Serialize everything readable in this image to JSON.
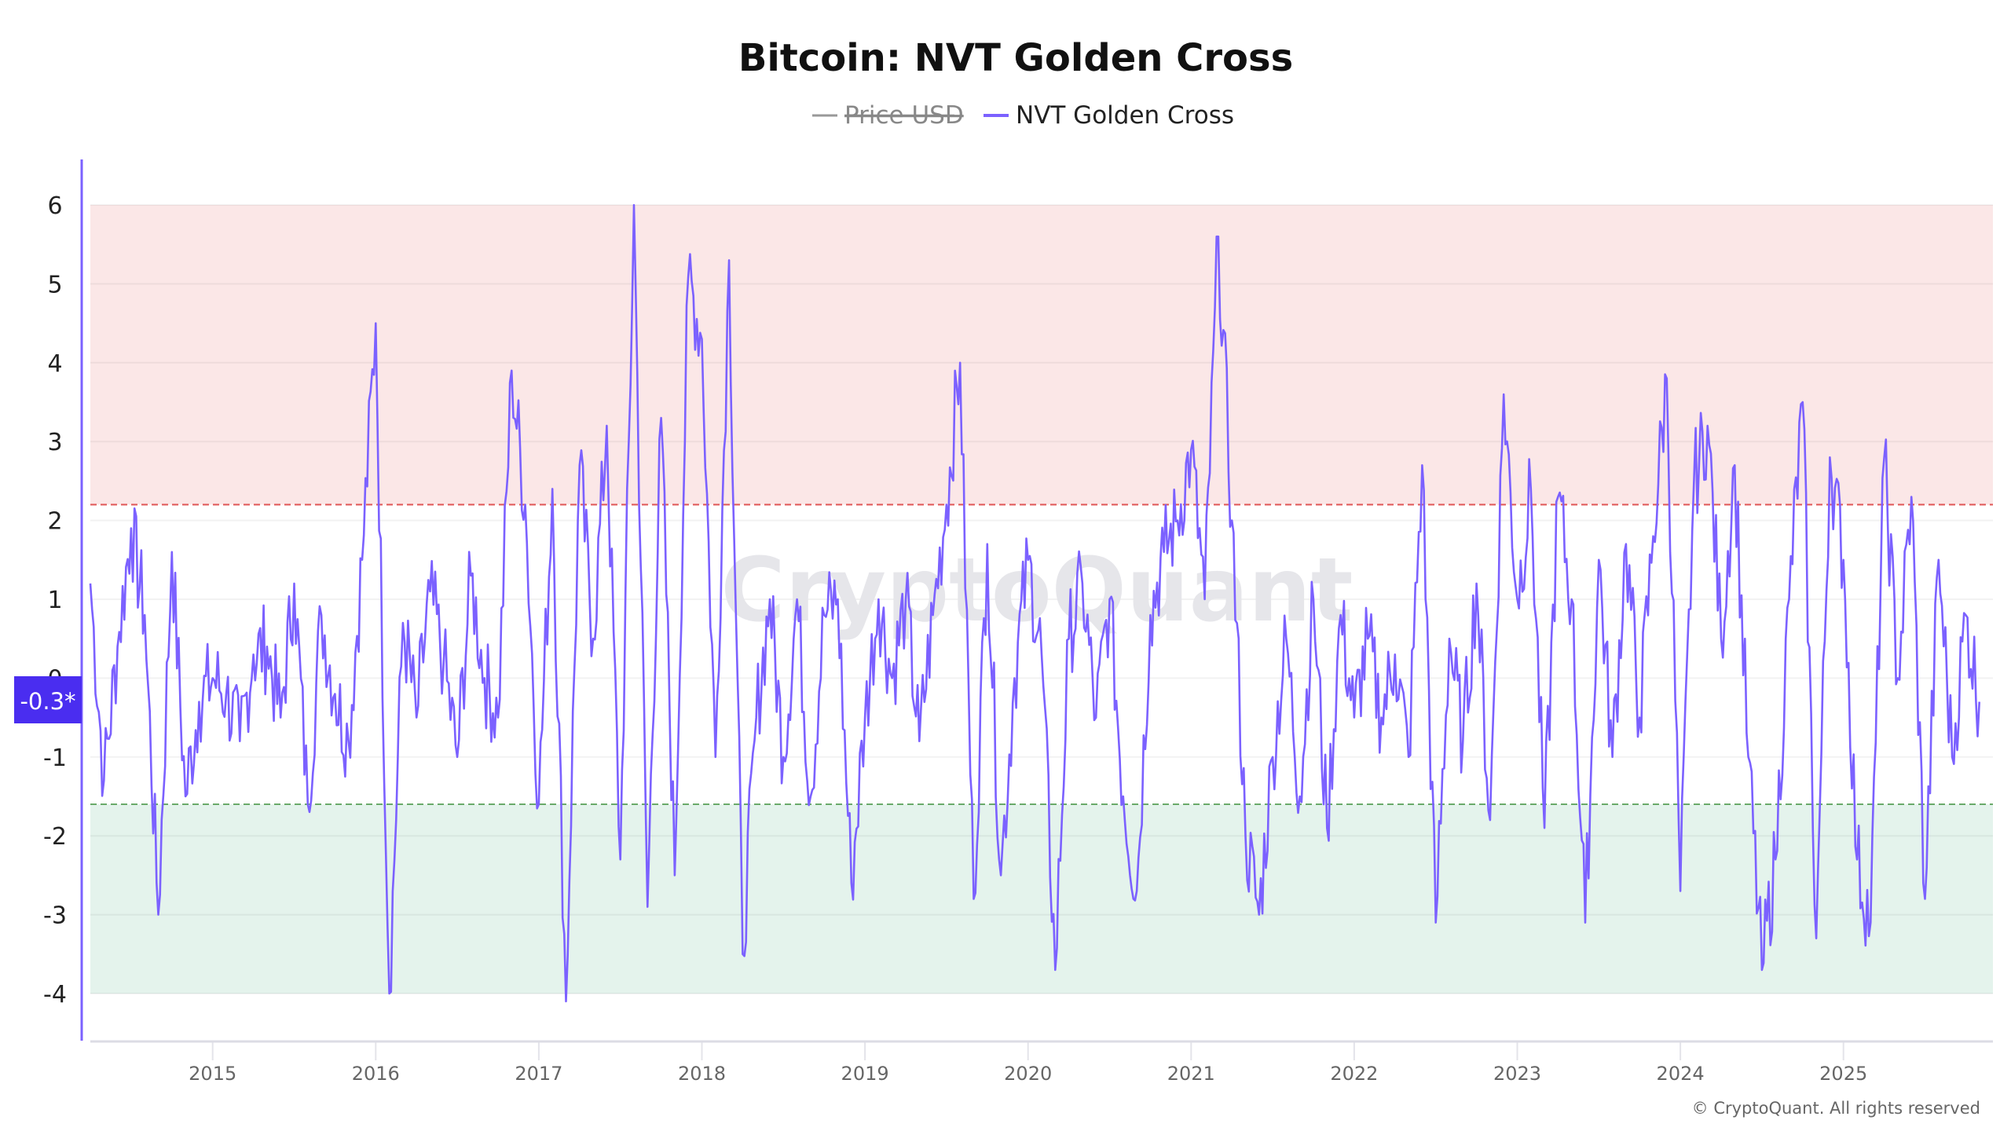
{
  "chart_data": {
    "type": "line",
    "title": "Bitcoin: NVT Golden Cross",
    "legend": [
      {
        "name": "Price USD",
        "color": "#999999",
        "hidden": true
      },
      {
        "name": "NVT Golden Cross",
        "color": "#7b61ff",
        "hidden": false
      }
    ],
    "legend_placement": "top-center",
    "xlabel": "",
    "ylabel": "",
    "x_ticks": [
      "2015",
      "2016",
      "2017",
      "2018",
      "2019",
      "2020",
      "2021",
      "2022",
      "2023",
      "2024",
      "2025"
    ],
    "y_ticks": [
      "6",
      "5",
      "4",
      "3",
      "2",
      "1",
      "0",
      "-1",
      "-2",
      "-3",
      "-4"
    ],
    "ylim": [
      -4,
      6
    ],
    "xlim": [
      "2014-04",
      "2025-11"
    ],
    "grid": true,
    "bands": [
      {
        "from": 2.2,
        "to": 6,
        "color": "#fbe7e7",
        "line_color": "#e05555",
        "line_value": 2.2
      },
      {
        "from": -4,
        "to": -1.6,
        "color": "#e4f3ec",
        "line_color": "#6aaa6a",
        "line_value": -1.6
      }
    ],
    "current_value_label": "-0.3*",
    "current_value_color": "#4a2df0",
    "watermark": "CryptoQuant",
    "copyright": "© CryptoQuant. All rights reserved",
    "series": [
      {
        "name": "NVT Golden Cross",
        "color": "#7b61ff",
        "x": [
          "2014-04",
          "2014-05",
          "2014-06",
          "2014-07",
          "2014-08",
          "2014-09",
          "2014-10",
          "2014-11",
          "2014-12",
          "2015-01",
          "2015-02",
          "2015-03",
          "2015-04",
          "2015-05",
          "2015-06",
          "2015-07",
          "2015-08",
          "2015-09",
          "2015-10",
          "2015-11",
          "2015-12",
          "2016-01",
          "2016-02",
          "2016-03",
          "2016-04",
          "2016-05",
          "2016-06",
          "2016-07",
          "2016-08",
          "2016-09",
          "2016-10",
          "2016-11",
          "2016-12",
          "2017-01",
          "2017-02",
          "2017-03",
          "2017-04",
          "2017-05",
          "2017-06",
          "2017-07",
          "2017-08",
          "2017-09",
          "2017-10",
          "2017-11",
          "2017-12",
          "2018-01",
          "2018-02",
          "2018-03",
          "2018-04",
          "2018-05",
          "2018-06",
          "2018-07",
          "2018-08",
          "2018-09",
          "2018-10",
          "2018-11",
          "2018-12",
          "2019-01",
          "2019-02",
          "2019-03",
          "2019-04",
          "2019-05",
          "2019-06",
          "2019-07",
          "2019-08",
          "2019-09",
          "2019-10",
          "2019-11",
          "2019-12",
          "2020-01",
          "2020-02",
          "2020-03",
          "2020-04",
          "2020-05",
          "2020-06",
          "2020-07",
          "2020-08",
          "2020-09",
          "2020-10",
          "2020-11",
          "2020-12",
          "2021-01",
          "2021-02",
          "2021-03",
          "2021-04",
          "2021-05",
          "2021-06",
          "2021-07",
          "2021-08",
          "2021-09",
          "2021-10",
          "2021-11",
          "2021-12",
          "2022-01",
          "2022-02",
          "2022-03",
          "2022-04",
          "2022-05",
          "2022-06",
          "2022-07",
          "2022-08",
          "2022-09",
          "2022-10",
          "2022-11",
          "2022-12",
          "2023-01",
          "2023-02",
          "2023-03",
          "2023-04",
          "2023-05",
          "2023-06",
          "2023-07",
          "2023-08",
          "2023-09",
          "2023-10",
          "2023-11",
          "2023-12",
          "2024-01",
          "2024-02",
          "2024-03",
          "2024-04",
          "2024-05",
          "2024-06",
          "2024-07",
          "2024-08",
          "2024-09",
          "2024-10",
          "2024-11",
          "2024-12",
          "2025-01",
          "2025-02",
          "2025-03",
          "2025-04",
          "2025-05",
          "2025-06",
          "2025-07",
          "2025-08",
          "2025-09",
          "2025-10",
          "2025-11"
        ],
        "values": [
          1.2,
          -1.3,
          0.4,
          1.9,
          0.8,
          -3.0,
          1.6,
          -1.5,
          -0.3,
          0.0,
          -0.2,
          -0.8,
          0.3,
          0.4,
          -0.5,
          1.2,
          -1.6,
          0.8,
          -0.2,
          -0.8,
          1.5,
          4.5,
          -4.0,
          0.7,
          -0.5,
          1.1,
          0.2,
          -1.0,
          1.3,
          0.0,
          -0.5,
          3.9,
          2.2,
          -1.6,
          2.4,
          -4.1,
          2.7,
          0.5,
          3.2,
          -2.3,
          6.0,
          -2.9,
          3.3,
          -2.5,
          5.1,
          4.3,
          -1.0,
          5.3,
          -3.5,
          -0.5,
          1.0,
          -1.0,
          1.0,
          -1.5,
          0.8,
          1.0,
          -2.6,
          -0.5,
          1.0,
          0.0,
          1.0,
          -0.8,
          0.8,
          2.2,
          4.0,
          -2.8,
          1.7,
          -2.5,
          0.0,
          1.5,
          0.3,
          -3.7,
          0.5,
          1.2,
          -0.5,
          1.0,
          -1.5,
          -2.7,
          0.8,
          1.6,
          2.0,
          2.9,
          1.0,
          5.6,
          2.0,
          -2.0,
          -3.0,
          -1.0,
          0.5,
          -1.5,
          1.0,
          -1.9,
          0.8,
          -0.5,
          0.5,
          -0.5,
          0.3,
          -1.0,
          2.7,
          -3.1,
          0.5,
          -0.8,
          1.2,
          -1.8,
          3.6,
          1.0,
          2.4,
          -1.9,
          2.3,
          1.0,
          -3.1,
          1.5,
          -1.0,
          1.7,
          -0.5,
          1.8,
          3.8,
          -2.7,
          2.5,
          3.2,
          0.5,
          2.7,
          -1.0,
          -3.7,
          -2.3,
          1.0,
          3.5,
          -3.3,
          2.8,
          1.5,
          -2.3,
          -3.1,
          2.8,
          0.0,
          2.3,
          -2.8,
          1.5,
          -1.0,
          0.8,
          -0.3
        ]
      }
    ]
  }
}
